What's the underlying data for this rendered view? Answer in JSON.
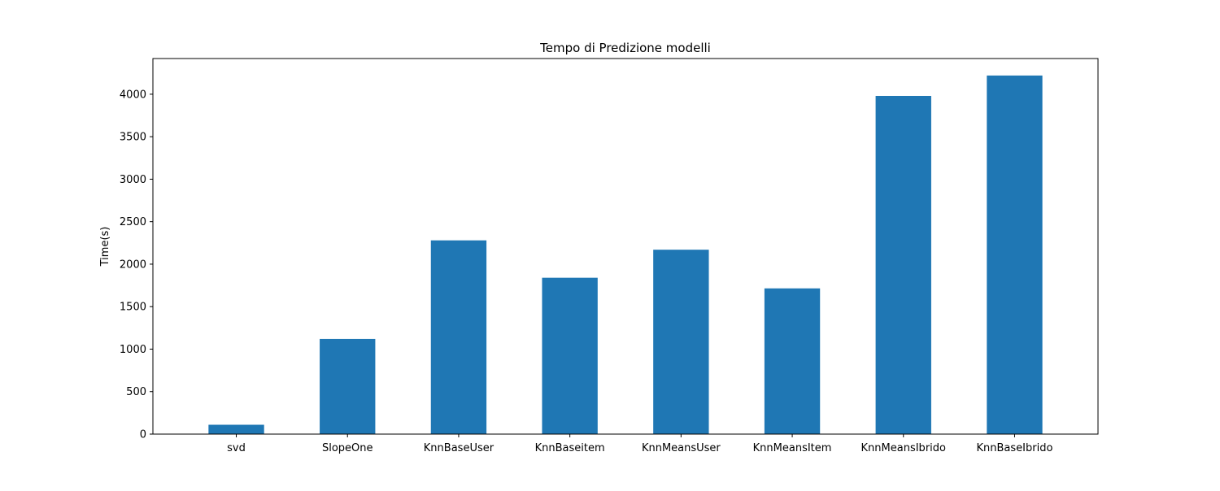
{
  "chart_data": {
    "type": "bar",
    "title": "Tempo di Predizione modelli",
    "xlabel": "",
    "ylabel": "Time(s)",
    "categories": [
      "svd",
      "SlopeOne",
      "KnnBaseUser",
      "KnnBaseitem",
      "KnnMeansUser",
      "KnnMeansItem",
      "KnnMeansIbrido",
      "KnnBaseIbrido"
    ],
    "values": [
      110,
      1120,
      2280,
      1840,
      2170,
      1715,
      3980,
      4220
    ],
    "ylim": [
      0,
      4420
    ],
    "yticks": [
      0,
      500,
      1000,
      1500,
      2000,
      2500,
      3000,
      3500,
      4000
    ],
    "grid": false,
    "bar_color": "#1f77b4"
  }
}
